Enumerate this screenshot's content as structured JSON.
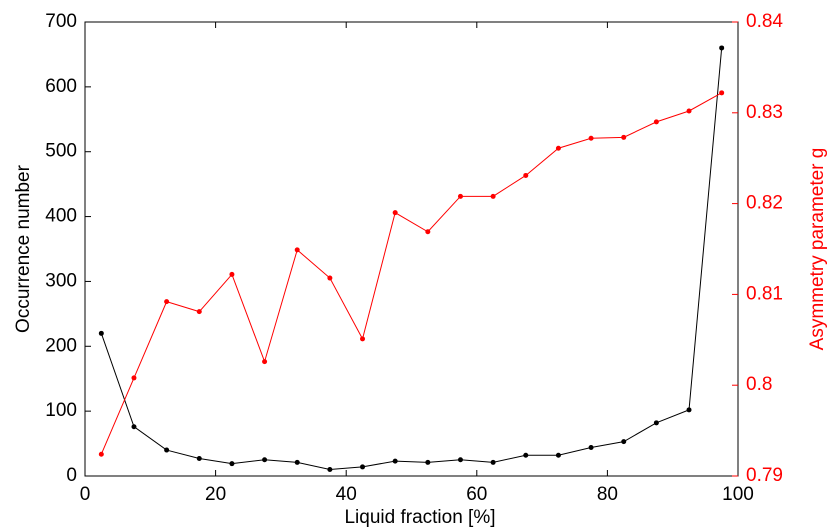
{
  "chart_data": {
    "type": "line",
    "x_label": "Liquid fraction [%]",
    "y_label": "Occurrence number",
    "y2_label": "Asymmetry parameter g",
    "x": [
      2.5,
      7.5,
      12.5,
      17.5,
      22.5,
      27.5,
      32.5,
      37.5,
      42.5,
      47.5,
      52.5,
      57.5,
      62.5,
      67.5,
      72.5,
      77.5,
      82.5,
      87.5,
      92.5,
      97.5
    ],
    "series": [
      {
        "name": "Occurrence number",
        "color": "#000000",
        "axis": "y",
        "values": [
          220,
          76,
          40,
          27,
          19,
          25,
          21,
          10,
          14,
          23,
          21,
          25,
          21,
          32,
          32,
          44,
          53,
          82,
          102,
          660
        ]
      },
      {
        "name": "Asymmetry parameter g",
        "color": "#ff0000",
        "axis": "y2",
        "values": [
          0.7924,
          0.8008,
          0.8092,
          0.8081,
          0.8122,
          0.8026,
          0.8149,
          0.8118,
          0.8051,
          0.819,
          0.8169,
          0.8208,
          0.8208,
          0.8231,
          0.8261,
          0.8272,
          0.8273,
          0.829,
          0.8302,
          0.8322
        ]
      }
    ],
    "xlim": [
      0,
      100
    ],
    "xticks": [
      0,
      20,
      40,
      60,
      80,
      100
    ],
    "ylim": [
      0,
      700
    ],
    "yticks": [
      0,
      100,
      200,
      300,
      400,
      500,
      600,
      700
    ],
    "y2lim": [
      0.79,
      0.84
    ],
    "y2ticks": [
      0.79,
      0.8,
      0.81,
      0.82,
      0.83,
      0.84
    ],
    "y2_color": "#ff0000"
  }
}
